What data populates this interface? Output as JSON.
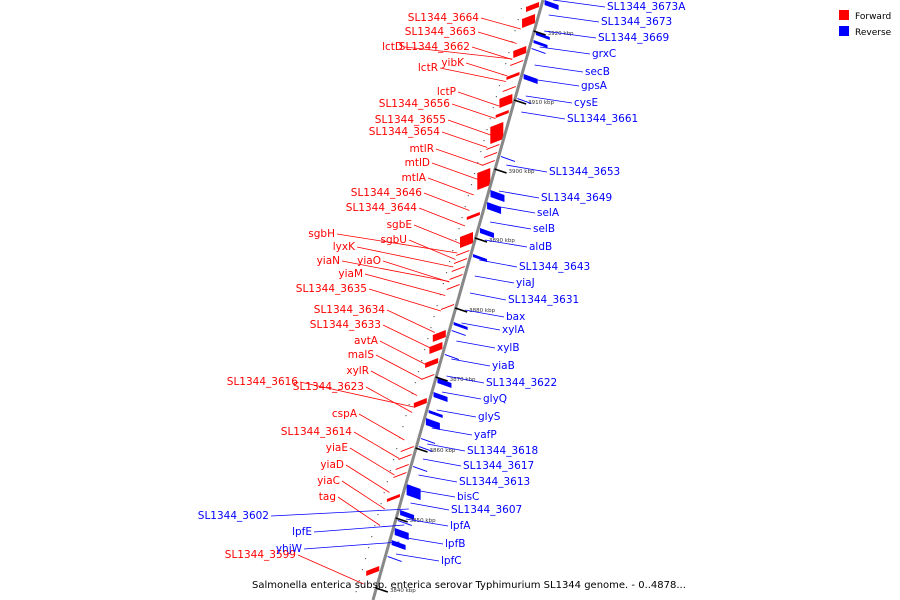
{
  "caption": "Salmonella enterica subsp. enterica serovar Typhimurium SL1344 genome. - 0..4878...",
  "legend": {
    "forward": {
      "label": "Forward",
      "color": "#ff0000"
    },
    "reverse": {
      "label": "Reverse",
      "color": "#0000ff"
    }
  },
  "colors": {
    "forward": "#ff0000",
    "reverse": "#0000ff",
    "backbone": "#888888"
  },
  "ticks": [
    "3920 kbp",
    "3910 kbp",
    "3900 kbp",
    "3890 kbp",
    "3880 kbp",
    "3870 kbp",
    "3860 kbp",
    "3850 kbp",
    "3840 kbp"
  ],
  "forward_labels": [
    "SL1344_3664",
    "SL1344_3663",
    "lctD",
    "SL1344_3662",
    "yibK",
    "lctR",
    "lctP",
    "SL1344_3656",
    "SL1344_3655",
    "SL1344_3654",
    "mtlR",
    "mtlD",
    "mtlA",
    "SL1344_3646",
    "SL1344_3644",
    "sgbE",
    "sgbH",
    "sgbU",
    "lyxK",
    "yiaN",
    "yiaO",
    "yiaM",
    "SL1344_3635",
    "SL1344_3634",
    "SL1344_3633",
    "avtA",
    "malS",
    "xylR",
    "SL1344_3616",
    "SL1344_3623",
    "cspA",
    "SL1344_3614",
    "yiaE",
    "yiaD",
    "yiaC",
    "tag",
    "SL1344_3599"
  ],
  "reverse_labels": [
    "SL1344_3673A",
    "SL1344_3673",
    "SL1344_3669",
    "grxC",
    "secB",
    "gpsA",
    "cysE",
    "SL1344_3661",
    "SL1344_3653",
    "SL1344_3649",
    "selA",
    "selB",
    "aldB",
    "SL1344_3643",
    "yiaJ",
    "SL1344_3631",
    "bax",
    "xylA",
    "xylB",
    "yiaB",
    "SL1344_3622",
    "glyQ",
    "glyS",
    "yafP",
    "SL1344_3618",
    "SL1344_3617",
    "SL1344_3613",
    "bisC",
    "SL1344_3607",
    "lpfA",
    "SL1344_3602",
    "lpfE",
    "lpfB",
    "yhjW",
    "lpfC"
  ]
}
